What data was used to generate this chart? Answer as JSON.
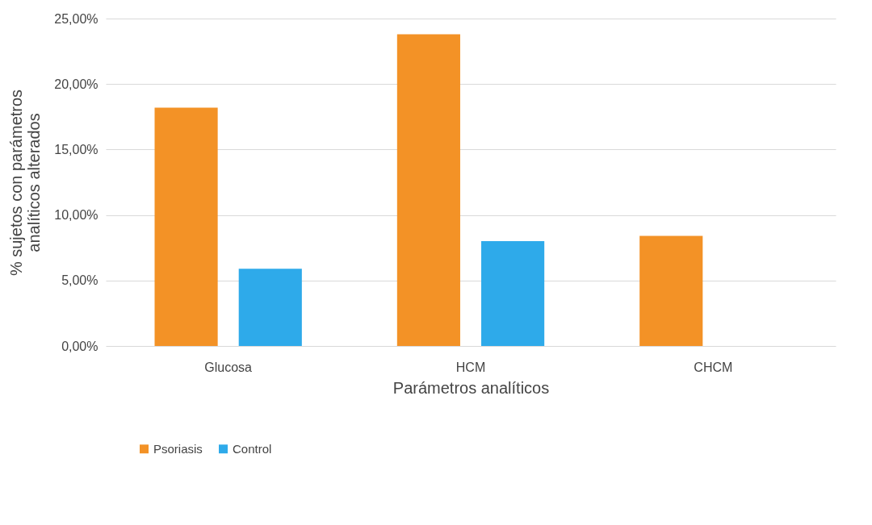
{
  "chart_data": {
    "type": "bar",
    "xlabel": "Parámetros analíticos",
    "ylabel": "% sujetos con parámetros analíticos alterados",
    "categories": [
      "Glucosa",
      "HCM",
      "CHCM"
    ],
    "series": [
      {
        "name": "Psoriasis",
        "color": "#f39226",
        "values": [
          18.2,
          23.8,
          8.4
        ]
      },
      {
        "name": "Control",
        "color": "#2eaaea",
        "values": [
          5.9,
          8.0,
          0
        ]
      }
    ],
    "ylim": [
      0,
      25
    ],
    "yticks": [
      {
        "value": 0,
        "label": "0,00%"
      },
      {
        "value": 5,
        "label": "5,00%"
      },
      {
        "value": 10,
        "label": "10,00%"
      },
      {
        "value": 15,
        "label": "15,00%"
      },
      {
        "value": 20,
        "label": "20,00%"
      },
      {
        "value": 25,
        "label": "25,00%"
      }
    ],
    "grid": "y",
    "legend": "bottom"
  }
}
